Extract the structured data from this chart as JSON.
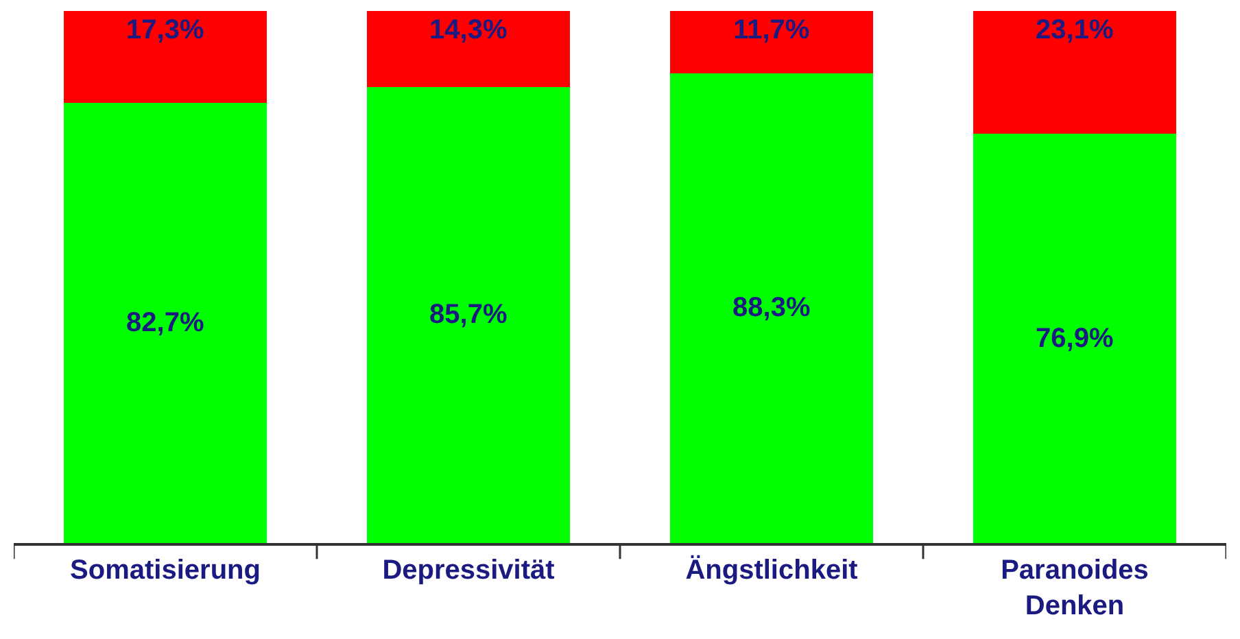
{
  "chart_data": {
    "type": "bar",
    "stacked": true,
    "categories": [
      "Somatisierung",
      "Depressivität",
      "Ängstlichkeit",
      "Paranoides Denken"
    ],
    "series": [
      {
        "color": "#00ff00",
        "values": [
          82.7,
          85.7,
          88.3,
          76.9
        ],
        "value_labels": [
          "82,7%",
          "85,7%",
          "88,3%",
          "76,9%"
        ]
      },
      {
        "color": "#ff0000",
        "values": [
          17.3,
          14.3,
          11.7,
          23.1
        ],
        "value_labels": [
          "17,3%",
          "14,3%",
          "11,7%",
          "23,1%"
        ]
      }
    ],
    "ylim": [
      0,
      100
    ],
    "tick_labels": "x"
  }
}
